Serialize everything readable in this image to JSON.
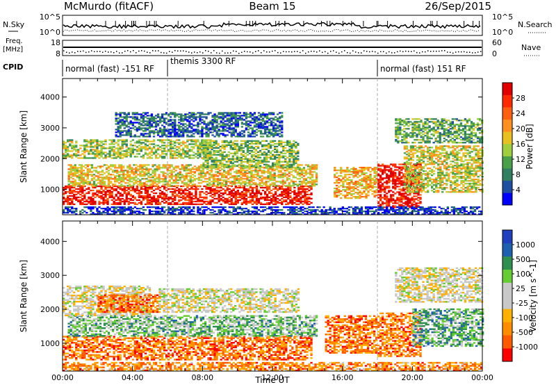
{
  "header": {
    "station": "McMurdo (fitACF)",
    "beam": "Beam 15",
    "date": "26/Sep/2015"
  },
  "noise_panel": {
    "left_label": "N.Sky",
    "right_label": "N.Search",
    "ticks_left": [
      "10^5",
      "10^0"
    ],
    "ticks_right": [
      "10^5",
      "10^0"
    ]
  },
  "freq_panel": {
    "left_label_1": "Freq.",
    "left_label_2": "[MHz]",
    "right_label": "Nave",
    "ticks_left": [
      "18",
      "8"
    ],
    "ticks_right": [
      "60",
      "0"
    ]
  },
  "cpid": {
    "label": "CPID",
    "segments": [
      {
        "text": "normal (fast) -151 RF",
        "start_hour": 0
      },
      {
        "text": "themis 3300 RF",
        "start_hour": 6
      },
      {
        "text": "normal (fast) 151 RF",
        "start_hour": 18
      }
    ]
  },
  "colors": {
    "power": [
      "#0000ff",
      "#1f4fa0",
      "#2f7f60",
      "#49a049",
      "#9fcf3f",
      "#e8c020",
      "#ff9020",
      "#ff6010",
      "#ff2a00",
      "#e00000"
    ],
    "velocity": [
      "#ff0000",
      "#ff5a00",
      "#ff8c00",
      "#ffb000",
      "#c8c8c8",
      "#c8c8c8",
      "#66cc33",
      "#2f8f4f",
      "#1f5faf",
      "#1f3fbf"
    ]
  },
  "chart_data": [
    {
      "type": "heatmap",
      "title": "Power",
      "xlabel": "",
      "ylabel": "Slant Range [km]",
      "colorbar_label": "Power [dB]",
      "colorbar_ticks": [
        "4",
        "8",
        "12",
        "16",
        "20",
        "24",
        "28"
      ],
      "x_tick_labels": [
        "00:00",
        "04:00",
        "08:00",
        "12:00",
        "16:00",
        "20:00",
        "00:00"
      ],
      "y_ticks": [
        1000,
        2000,
        3000,
        4000
      ],
      "xlim": [
        0,
        24
      ],
      "ylim": [
        180,
        4600
      ],
      "bands": [
        {
          "t0": 0.0,
          "t1": 14.2,
          "r0": 500,
          "r1": 1100,
          "level": 0.9
        },
        {
          "t0": 0.3,
          "t1": 14.5,
          "r0": 1100,
          "r1": 1800,
          "level": 0.55
        },
        {
          "t0": 0.0,
          "t1": 8.5,
          "r0": 2000,
          "r1": 2600,
          "level": 0.45
        },
        {
          "t0": 8.0,
          "t1": 13.5,
          "r0": 1700,
          "r1": 2600,
          "level": 0.4
        },
        {
          "t0": 3.0,
          "t1": 12.5,
          "r0": 2700,
          "r1": 3500,
          "level": 0.2
        },
        {
          "t0": 15.5,
          "t1": 18.0,
          "r0": 700,
          "r1": 1700,
          "level": 0.6
        },
        {
          "t0": 18.0,
          "t1": 20.5,
          "r0": 400,
          "r1": 1800,
          "level": 0.92
        },
        {
          "t0": 19.5,
          "t1": 24.0,
          "r0": 900,
          "r1": 2400,
          "level": 0.5
        },
        {
          "t0": 19.0,
          "t1": 24.0,
          "r0": 2500,
          "r1": 3300,
          "level": 0.35
        },
        {
          "t0": 0.0,
          "t1": 24.0,
          "r0": 180,
          "r1": 420,
          "level": 0.1
        }
      ]
    },
    {
      "type": "heatmap",
      "title": "Velocity",
      "xlabel": "Time UT",
      "ylabel": "Slant Range [km]",
      "colorbar_label": "Velocity [m s^-1]",
      "colorbar_ticks": [
        "-1000",
        "-500",
        "-100",
        "-25",
        "25",
        "100",
        "500",
        "1000"
      ],
      "x_tick_labels": [
        "00:00",
        "04:00",
        "08:00",
        "12:00",
        "16:00",
        "20:00",
        "00:00"
      ],
      "y_ticks": [
        1000,
        2000,
        3000,
        4000
      ],
      "xlim": [
        0,
        24
      ],
      "ylim": [
        180,
        4600
      ],
      "bands": [
        {
          "t0": 0.0,
          "t1": 14.2,
          "r0": 500,
          "r1": 1200,
          "level": 0.2
        },
        {
          "t0": 0.3,
          "t1": 14.5,
          "r0": 1200,
          "r1": 1800,
          "level": 0.65
        },
        {
          "t0": 0.0,
          "t1": 5.0,
          "r0": 1800,
          "r1": 2700,
          "level": 0.47
        },
        {
          "t0": 2.0,
          "t1": 5.5,
          "r0": 1900,
          "r1": 2400,
          "level": 0.18
        },
        {
          "t0": 5.5,
          "t1": 13.5,
          "r0": 1900,
          "r1": 2600,
          "level": 0.5
        },
        {
          "t0": 15.0,
          "t1": 18.0,
          "r0": 700,
          "r1": 1800,
          "level": 0.2
        },
        {
          "t0": 18.0,
          "t1": 20.5,
          "r0": 600,
          "r1": 1900,
          "level": 0.22
        },
        {
          "t0": 20.0,
          "t1": 24.0,
          "r0": 900,
          "r1": 2000,
          "level": 0.7
        },
        {
          "t0": 19.0,
          "t1": 24.0,
          "r0": 2200,
          "r1": 3200,
          "level": 0.48
        },
        {
          "t0": 0.0,
          "t1": 24.0,
          "r0": 180,
          "r1": 420,
          "level": 0.25
        }
      ]
    }
  ]
}
